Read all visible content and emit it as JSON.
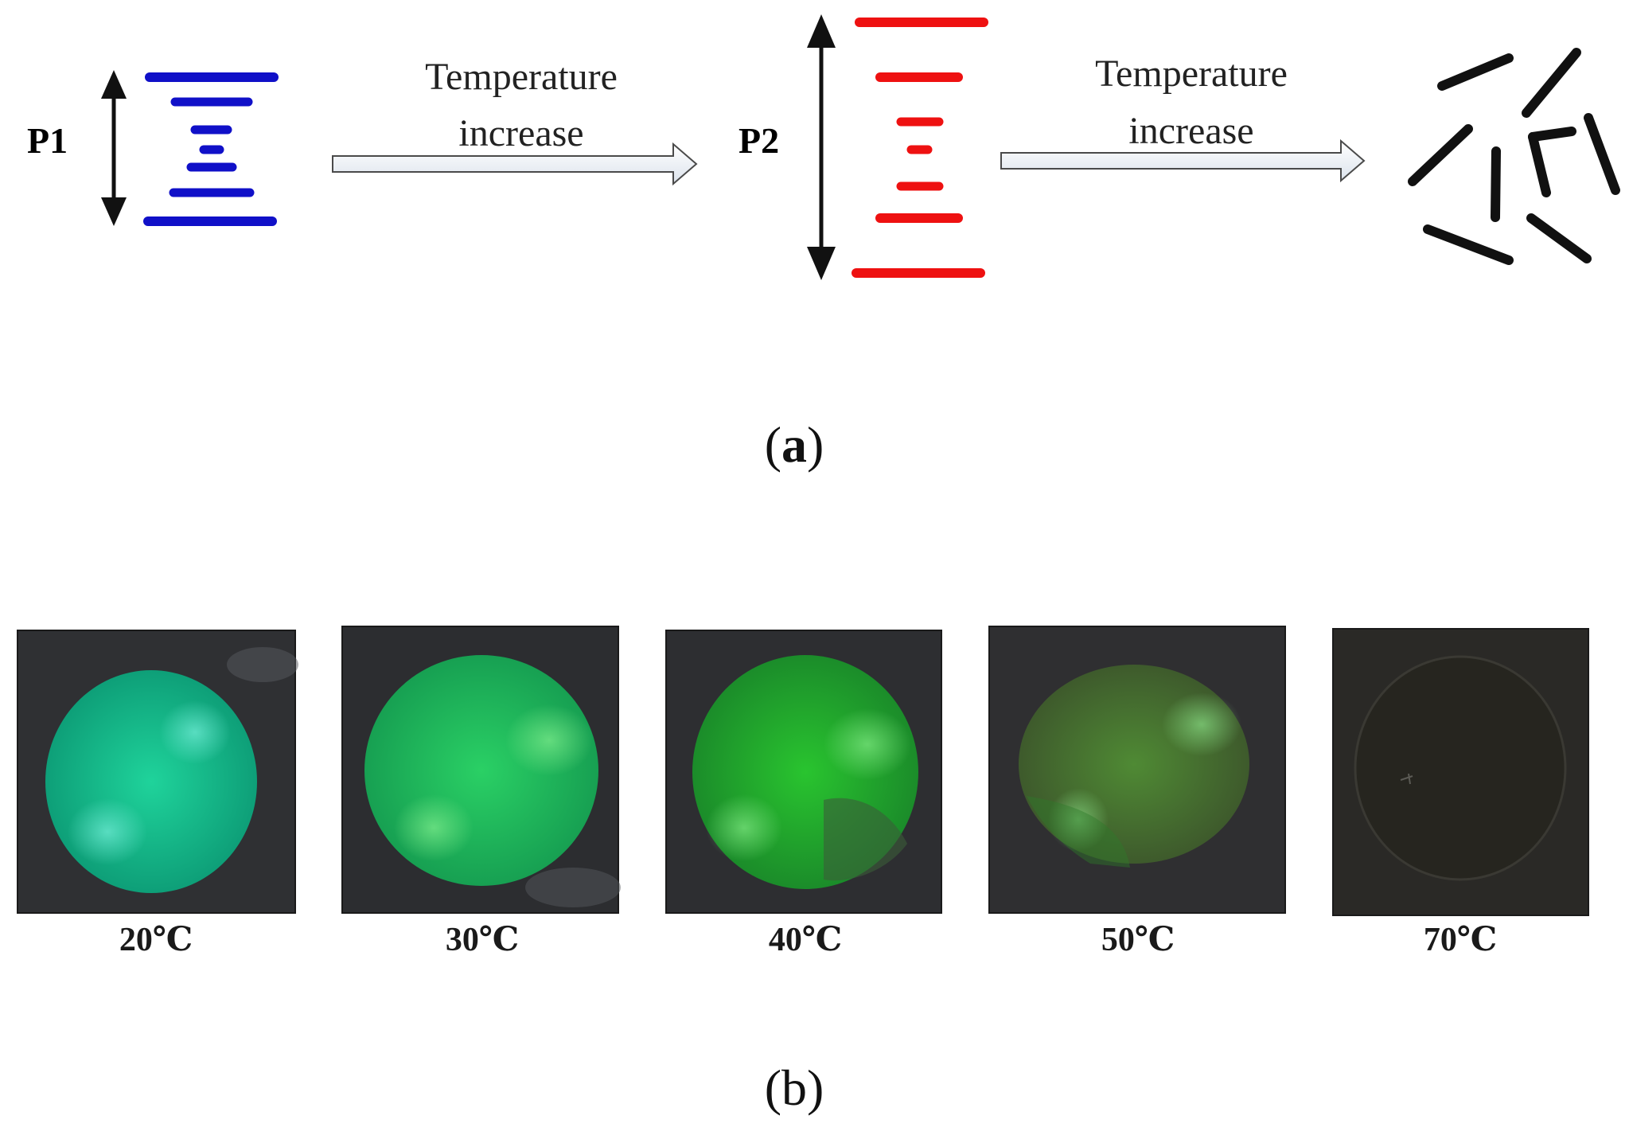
{
  "panel_a": {
    "caption_open": "(",
    "caption_letter": "a",
    "caption_close": ")",
    "left_state": {
      "label": "P1",
      "color": "#1010c8"
    },
    "middle_state": {
      "label": "P2",
      "color": "#ee1111"
    },
    "arrow_1": {
      "text_line1": "Temperature",
      "text_line2": "increase"
    },
    "arrow_2": {
      "text_line1": "Temperature",
      "text_line2": "increase"
    },
    "disordered_state": {
      "color": "#111111"
    }
  },
  "panel_b": {
    "caption": "(b)",
    "samples": [
      {
        "label": "20℃",
        "disc_color": "#13b98a"
      },
      {
        "label": "30℃",
        "disc_color": "#1cc25a"
      },
      {
        "label": "40℃",
        "disc_color": "#22c232"
      },
      {
        "label": "50℃",
        "disc_color": "#3a9a28"
      },
      {
        "label": "70℃",
        "disc_color": "#26251f"
      }
    ]
  }
}
